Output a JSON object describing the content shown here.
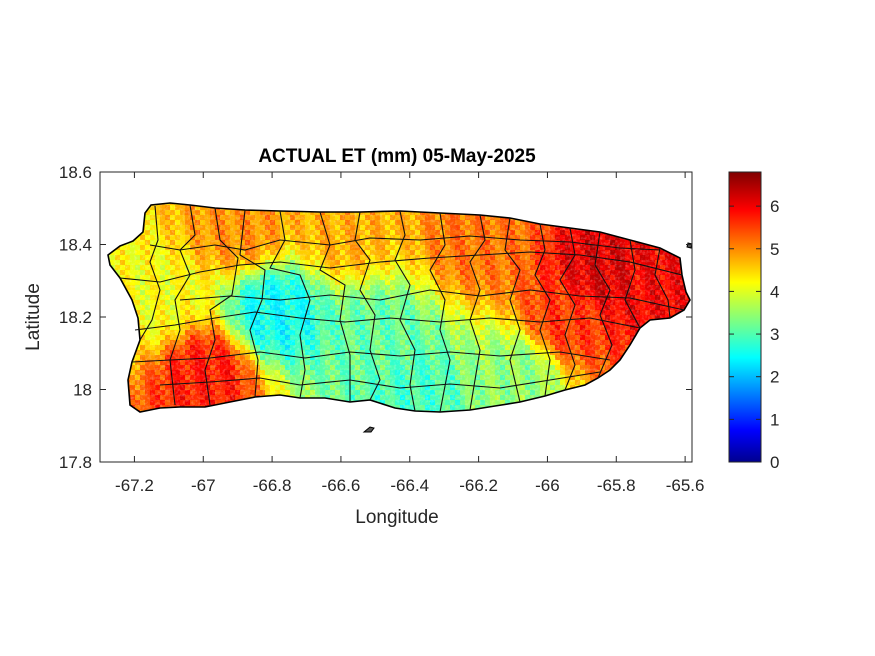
{
  "chart_data": {
    "type": "heatmap",
    "title": "ACTUAL ET (mm) 05-May-2025",
    "xlabel": "Longitude",
    "ylabel": "Latitude",
    "xlim": [
      -67.3,
      -65.58
    ],
    "ylim": [
      17.8,
      18.6
    ],
    "xticks": [
      -67.2,
      -67,
      -66.8,
      -66.6,
      -66.4,
      -66.2,
      -66,
      -65.8,
      -65.6
    ],
    "xtick_labels": [
      "-67.2",
      "-67",
      "-66.8",
      "-66.6",
      "-66.4",
      "-66.2",
      "-66",
      "-65.8",
      "-65.6"
    ],
    "yticks": [
      17.8,
      18,
      18.2,
      18.4,
      18.6
    ],
    "ytick_labels": [
      "17.8",
      "18",
      "18.2",
      "18.4",
      "18.6"
    ],
    "colorbar": {
      "colormap": "jet",
      "range": [
        0,
        6.8
      ],
      "ticks": [
        0,
        1,
        2,
        3,
        4,
        5,
        6
      ],
      "tick_labels": [
        "0",
        "1",
        "2",
        "3",
        "4",
        "5",
        "6"
      ]
    },
    "region": "Puerto Rico",
    "values_by_area": [
      {
        "lon": -65.85,
        "lat": 18.33,
        "value": 6.2
      },
      {
        "lon": -65.7,
        "lat": 18.3,
        "value": 6.0
      },
      {
        "lon": -65.95,
        "lat": 18.2,
        "value": 5.6
      },
      {
        "lon": -66.2,
        "lat": 18.42,
        "value": 5.2
      },
      {
        "lon": -66.6,
        "lat": 18.45,
        "value": 4.8
      },
      {
        "lon": -66.9,
        "lat": 18.45,
        "value": 5.0
      },
      {
        "lon": -67.0,
        "lat": 18.05,
        "value": 5.8
      },
      {
        "lon": -66.8,
        "lat": 18.22,
        "value": 2.6
      },
      {
        "lon": -66.5,
        "lat": 18.15,
        "value": 3.2
      },
      {
        "lon": -66.4,
        "lat": 18.0,
        "value": 3.0
      },
      {
        "lon": -66.1,
        "lat": 18.05,
        "value": 3.5
      },
      {
        "lon": -67.15,
        "lat": 18.25,
        "value": 4.2
      }
    ],
    "grid": false
  }
}
